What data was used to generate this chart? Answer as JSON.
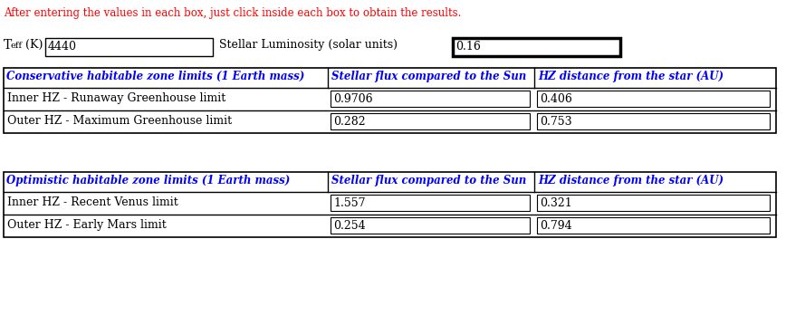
{
  "instruction": "After entering the values in each box, just click inside each box to obtain the results.",
  "instruction_color": "#ff0000",
  "teff_value": "4440",
  "lum_label": "Stellar Luminosity (solar units)",
  "lum_value": "0.16",
  "conservative_header": "Conservative habitable zone limits (1 Earth mass)",
  "flux_header": "Stellar flux compared to the Sun",
  "dist_header": "HZ distance from the star (AU)",
  "conservative_rows": [
    {
      "label": "Inner HZ - Runaway Greenhouse limit",
      "flux": "0.9706",
      "dist": "0.406"
    },
    {
      "label": "Outer HZ - Maximum Greenhouse limit",
      "flux": "0.282",
      "dist": "0.753"
    }
  ],
  "optimistic_header": "Optimistic habitable zone limits (1 Earth mass)",
  "optimistic_rows": [
    {
      "label": "Inner HZ - Recent Venus limit",
      "flux": "1.557",
      "dist": "0.321"
    },
    {
      "label": "Outer HZ - Early Mars limit",
      "flux": "0.254",
      "dist": "0.794"
    }
  ],
  "header_color": "#0000ff",
  "text_color": "#000000",
  "bg_color": "#ffffff",
  "figw": 8.68,
  "figh": 3.59,
  "dpi": 100
}
